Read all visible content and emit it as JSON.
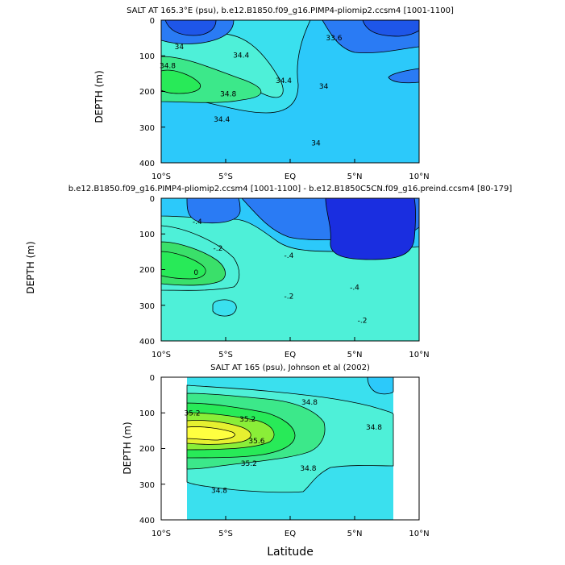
{
  "chart_data": [
    {
      "type": "contour",
      "title": "SALT AT 165.3°E (psu), b.e12.B1850.f09_g16.PIMP4-pliomip2.ccsm4 [1001-1100]",
      "xlabel": "",
      "ylabel": "DEPTH (m)",
      "xlim": [
        -10,
        10
      ],
      "ylim": [
        0,
        400
      ],
      "x_ticks": [
        "10°S",
        "5°S",
        "EQ",
        "5°N",
        "10°N"
      ],
      "y_ticks": [
        "0",
        "100",
        "200",
        "300",
        "400"
      ],
      "contour_labels": [
        {
          "text": "34",
          "x": -8.6,
          "y": 75
        },
        {
          "text": "34.4",
          "x": -3.8,
          "y": 98
        },
        {
          "text": "34.8",
          "x": -9.5,
          "y": 128
        },
        {
          "text": "34.8",
          "x": -4.8,
          "y": 207
        },
        {
          "text": "34.4",
          "x": -5.3,
          "y": 278
        },
        {
          "text": "34.4",
          "x": -0.5,
          "y": 170
        },
        {
          "text": "34",
          "x": 2.6,
          "y": 185
        },
        {
          "text": "34",
          "x": 2.0,
          "y": 345
        },
        {
          "text": "33.6",
          "x": 3.4,
          "y": 50
        }
      ],
      "colors": [
        "#1e56e8",
        "#2a7bf4",
        "#1ea3f6",
        "#2cc9fa",
        "#3ae0ee",
        "#4ef0d8",
        "#3ce88a",
        "#28ea58"
      ]
    },
    {
      "type": "contour",
      "title": "b.e12.B1850.f09_g16.PIMP4-pliomip2.ccsm4 [1001-1100] - b.e12.B1850C5CN.f09_g16.preind.ccsm4 [80-179]",
      "xlabel": "",
      "ylabel": "DEPTH (m)",
      "xlim": [
        -10,
        10
      ],
      "ylim": [
        0,
        400
      ],
      "x_ticks": [
        "10°S",
        "5°S",
        "EQ",
        "5°N",
        "10°N"
      ],
      "y_ticks": [
        "0",
        "100",
        "200",
        "300",
        "400"
      ],
      "contour_labels": [
        {
          "text": "-.4",
          "x": -7.2,
          "y": 65
        },
        {
          "text": "-.2",
          "x": -5.6,
          "y": 140
        },
        {
          "text": "0",
          "x": -7.3,
          "y": 208
        },
        {
          "text": "-.4",
          "x": -0.1,
          "y": 160
        },
        {
          "text": "-.2",
          "x": -0.1,
          "y": 275
        },
        {
          "text": "-.4",
          "x": 5.0,
          "y": 250
        },
        {
          "text": "-.2",
          "x": 5.6,
          "y": 342
        }
      ],
      "colors": [
        "#1a2ee0",
        "#1e56e8",
        "#2a7bf4",
        "#2cc9fa",
        "#4ef0d8",
        "#3ae06a",
        "#28ea58"
      ]
    },
    {
      "type": "contour",
      "title": "SALT AT 165 (psu), Johnson et al (2002)",
      "xlabel": "Latitude",
      "ylabel": "DEPTH (m)",
      "xlim": [
        -10,
        10
      ],
      "ylim": [
        0,
        400
      ],
      "data_extent_x": [
        -8,
        8
      ],
      "x_ticks": [
        "10°S",
        "5°S",
        "EQ",
        "5°N",
        "10°N"
      ],
      "y_ticks": [
        "0",
        "100",
        "200",
        "300",
        "400"
      ],
      "contour_labels": [
        {
          "text": "35.2",
          "x": -7.6,
          "y": 100
        },
        {
          "text": "35.2",
          "x": -3.3,
          "y": 118
        },
        {
          "text": "35.6",
          "x": -2.6,
          "y": 178
        },
        {
          "text": "35.2",
          "x": -3.2,
          "y": 242
        },
        {
          "text": "34.8",
          "x": 1.5,
          "y": 70
        },
        {
          "text": "34.8",
          "x": 1.4,
          "y": 255
        },
        {
          "text": "34.8",
          "x": 6.5,
          "y": 140
        },
        {
          "text": "34.8",
          "x": -5.5,
          "y": 318
        }
      ],
      "colors": [
        "#2cc9fa",
        "#3ae0ee",
        "#4ef0d8",
        "#3ce88a",
        "#28ea58",
        "#8aee38",
        "#e6f030",
        "#ffff40"
      ]
    }
  ]
}
